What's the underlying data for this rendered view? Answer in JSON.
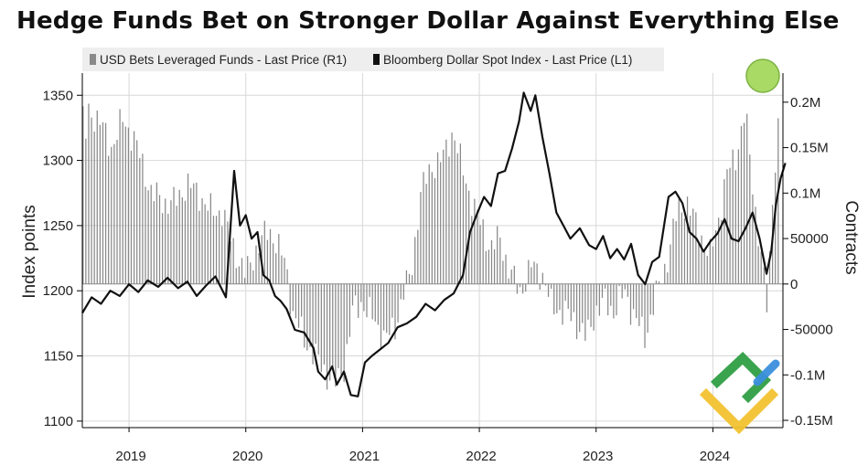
{
  "colors": {
    "bars": "#8a8a8a",
    "line": "#111111",
    "grid": "#d7d7d7",
    "plot_bg": "#ffffff",
    "legend_bg": "#eeeeee",
    "highlight": "#9ad44a",
    "logo_green": "#2f9e44",
    "logo_yellow": "#f2c230",
    "logo_blue": "#3a8fdc"
  },
  "chart_data": {
    "type": "bar+line",
    "title": "Hedge Funds Bet on Stronger Dollar Against Everything Else",
    "legend": [
      {
        "label": "USD Bets Leveraged Funds - Last Price (R1)",
        "kind": "bar",
        "icon": "bar-swatch-icon"
      },
      {
        "label": "Bloomberg Dollar Spot Index - Last Price (L1)",
        "kind": "line",
        "icon": "line-swatch-icon"
      }
    ],
    "x_range": [
      2018.6,
      2024.6
    ],
    "x_ticks": [
      {
        "label": "2019",
        "value": 2019.0
      },
      {
        "label": "2020",
        "value": 2020.0
      },
      {
        "label": "2021",
        "value": 2021.0
      },
      {
        "label": "2022",
        "value": 2022.0
      },
      {
        "label": "2023",
        "value": 2023.0
      },
      {
        "label": "2024",
        "value": 2024.0
      }
    ],
    "left_axis": {
      "title": "Index points",
      "range": [
        1095,
        1367
      ],
      "ticks": [
        {
          "label": "1100",
          "value": 1100
        },
        {
          "label": "1150",
          "value": 1150
        },
        {
          "label": "1200",
          "value": 1200
        },
        {
          "label": "1250",
          "value": 1250
        },
        {
          "label": "1300",
          "value": 1300
        },
        {
          "label": "1350",
          "value": 1350
        }
      ]
    },
    "right_axis": {
      "title": "Contracts",
      "range": [
        -158000,
        232000
      ],
      "ticks": [
        {
          "label": "-0.15M",
          "value": -150000
        },
        {
          "label": "-0.1M",
          "value": -100000
        },
        {
          "label": "-50000",
          "value": -50000
        },
        {
          "label": "0",
          "value": 0
        },
        {
          "label": "50000",
          "value": 50000
        },
        {
          "label": "0.1M",
          "value": 100000
        },
        {
          "label": "0.15M",
          "value": 150000
        },
        {
          "label": "0.2M",
          "value": 200000
        }
      ]
    },
    "bars_series": {
      "name": "USD Bets Leveraged Funds - Last Price (R1)",
      "axis": "right",
      "bar_width_years": 0.018,
      "points": [
        [
          2018.62,
          150000
        ],
        [
          2018.66,
          190000
        ],
        [
          2018.75,
          180000
        ],
        [
          2018.85,
          150000
        ],
        [
          2018.95,
          180000
        ],
        [
          2019.05,
          160000
        ],
        [
          2019.12,
          130000
        ],
        [
          2019.2,
          100000
        ],
        [
          2019.3,
          90000
        ],
        [
          2019.4,
          90000
        ],
        [
          2019.5,
          110000
        ],
        [
          2019.6,
          100000
        ],
        [
          2019.7,
          80000
        ],
        [
          2019.8,
          80000
        ],
        [
          2019.9,
          40000
        ],
        [
          2020.0,
          10000
        ],
        [
          2020.1,
          40000
        ],
        [
          2020.2,
          60000
        ],
        [
          2020.25,
          50000
        ],
        [
          2020.35,
          20000
        ],
        [
          2020.4,
          -30000
        ],
        [
          2020.5,
          -60000
        ],
        [
          2020.6,
          -80000
        ],
        [
          2020.7,
          -100000
        ],
        [
          2020.78,
          -110000
        ],
        [
          2020.85,
          -90000
        ],
        [
          2020.92,
          -30000
        ],
        [
          2021.0,
          -20000
        ],
        [
          2021.1,
          -40000
        ],
        [
          2021.2,
          -60000
        ],
        [
          2021.28,
          -50000
        ],
        [
          2021.35,
          -10000
        ],
        [
          2021.42,
          10000
        ],
        [
          2021.5,
          100000
        ],
        [
          2021.6,
          130000
        ],
        [
          2021.7,
          140000
        ],
        [
          2021.78,
          170000
        ],
        [
          2021.85,
          130000
        ],
        [
          2021.92,
          100000
        ],
        [
          2022.0,
          70000
        ],
        [
          2022.1,
          40000
        ],
        [
          2022.18,
          50000
        ],
        [
          2022.25,
          20000
        ],
        [
          2022.35,
          -10000
        ],
        [
          2022.45,
          20000
        ],
        [
          2022.55,
          10000
        ],
        [
          2022.62,
          -25000
        ],
        [
          2022.72,
          -30000
        ],
        [
          2022.82,
          -40000
        ],
        [
          2022.92,
          -60000
        ],
        [
          2023.0,
          -30000
        ],
        [
          2023.08,
          -20000
        ],
        [
          2023.15,
          -30000
        ],
        [
          2023.25,
          -10000
        ],
        [
          2023.35,
          -40000
        ],
        [
          2023.42,
          -60000
        ],
        [
          2023.5,
          -20000
        ],
        [
          2023.6,
          20000
        ],
        [
          2023.7,
          80000
        ],
        [
          2023.78,
          90000
        ],
        [
          2023.88,
          60000
        ],
        [
          2023.98,
          30000
        ],
        [
          2024.05,
          70000
        ],
        [
          2024.12,
          120000
        ],
        [
          2024.2,
          140000
        ],
        [
          2024.28,
          190000
        ],
        [
          2024.36,
          90000
        ],
        [
          2024.42,
          30000
        ],
        [
          2024.47,
          -30000
        ],
        [
          2024.52,
          110000
        ],
        [
          2024.57,
          180000
        ]
      ]
    },
    "line_series": {
      "name": "Bloomberg Dollar Spot Index - Last Price (L1)",
      "axis": "left",
      "points": [
        [
          2018.6,
          1183
        ],
        [
          2018.68,
          1195
        ],
        [
          2018.76,
          1190
        ],
        [
          2018.84,
          1200
        ],
        [
          2018.92,
          1196
        ],
        [
          2019.0,
          1205
        ],
        [
          2019.08,
          1199
        ],
        [
          2019.16,
          1208
        ],
        [
          2019.25,
          1203
        ],
        [
          2019.33,
          1210
        ],
        [
          2019.42,
          1202
        ],
        [
          2019.5,
          1207
        ],
        [
          2019.58,
          1196
        ],
        [
          2019.66,
          1204
        ],
        [
          2019.74,
          1211
        ],
        [
          2019.83,
          1195
        ],
        [
          2019.9,
          1292
        ],
        [
          2019.95,
          1250
        ],
        [
          2020.0,
          1258
        ],
        [
          2020.05,
          1240
        ],
        [
          2020.1,
          1245
        ],
        [
          2020.15,
          1212
        ],
        [
          2020.2,
          1208
        ],
        [
          2020.25,
          1196
        ],
        [
          2020.3,
          1192
        ],
        [
          2020.35,
          1186
        ],
        [
          2020.42,
          1170
        ],
        [
          2020.5,
          1168
        ],
        [
          2020.58,
          1156
        ],
        [
          2020.62,
          1138
        ],
        [
          2020.68,
          1132
        ],
        [
          2020.74,
          1142
        ],
        [
          2020.78,
          1128
        ],
        [
          2020.84,
          1138
        ],
        [
          2020.9,
          1120
        ],
        [
          2020.96,
          1119
        ],
        [
          2021.02,
          1145
        ],
        [
          2021.08,
          1150
        ],
        [
          2021.15,
          1155
        ],
        [
          2021.22,
          1160
        ],
        [
          2021.3,
          1172
        ],
        [
          2021.38,
          1175
        ],
        [
          2021.46,
          1180
        ],
        [
          2021.54,
          1190
        ],
        [
          2021.62,
          1185
        ],
        [
          2021.7,
          1193
        ],
        [
          2021.78,
          1198
        ],
        [
          2021.86,
          1212
        ],
        [
          2021.92,
          1245
        ],
        [
          2021.98,
          1259
        ],
        [
          2022.04,
          1272
        ],
        [
          2022.1,
          1265
        ],
        [
          2022.16,
          1290
        ],
        [
          2022.22,
          1292
        ],
        [
          2022.28,
          1309
        ],
        [
          2022.34,
          1330
        ],
        [
          2022.38,
          1352
        ],
        [
          2022.44,
          1338
        ],
        [
          2022.48,
          1350
        ],
        [
          2022.54,
          1318
        ],
        [
          2022.6,
          1290
        ],
        [
          2022.66,
          1260
        ],
        [
          2022.72,
          1250
        ],
        [
          2022.78,
          1240
        ],
        [
          2022.86,
          1248
        ],
        [
          2022.94,
          1235
        ],
        [
          2023.0,
          1232
        ],
        [
          2023.06,
          1242
        ],
        [
          2023.12,
          1225
        ],
        [
          2023.18,
          1232
        ],
        [
          2023.24,
          1224
        ],
        [
          2023.3,
          1236
        ],
        [
          2023.36,
          1212
        ],
        [
          2023.42,
          1205
        ],
        [
          2023.48,
          1222
        ],
        [
          2023.54,
          1226
        ],
        [
          2023.62,
          1272
        ],
        [
          2023.68,
          1276
        ],
        [
          2023.74,
          1267
        ],
        [
          2023.8,
          1245
        ],
        [
          2023.86,
          1240
        ],
        [
          2023.92,
          1230
        ],
        [
          2023.98,
          1238
        ],
        [
          2024.04,
          1244
        ],
        [
          2024.1,
          1255
        ],
        [
          2024.16,
          1240
        ],
        [
          2024.22,
          1238
        ],
        [
          2024.28,
          1248
        ],
        [
          2024.34,
          1260
        ],
        [
          2024.4,
          1240
        ],
        [
          2024.46,
          1213
        ],
        [
          2024.5,
          1230
        ],
        [
          2024.54,
          1266
        ],
        [
          2024.58,
          1286
        ],
        [
          2024.62,
          1298
        ]
      ]
    }
  }
}
